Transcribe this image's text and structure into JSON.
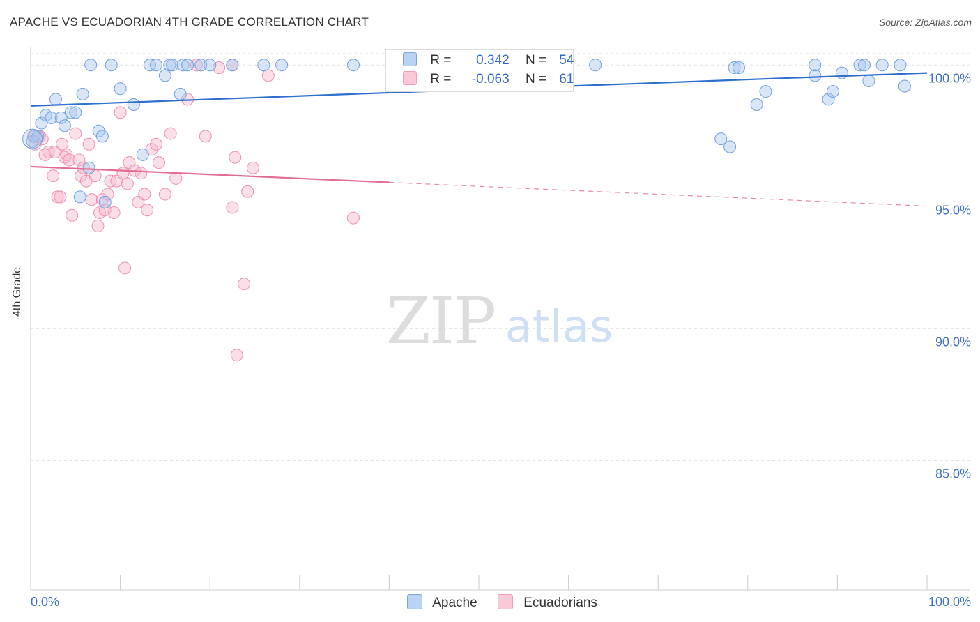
{
  "title": "APACHE VS ECUADORIAN 4TH GRADE CORRELATION CHART",
  "source": "Source: ZipAtlas.com",
  "watermark": {
    "zip": "ZIP",
    "atlas": "atlas"
  },
  "legend": {
    "r_label": "R =",
    "n_label": "N =",
    "apache": {
      "r": "0.342",
      "n": "54"
    },
    "ecuadorians": {
      "r": "-0.063",
      "n": "61"
    }
  },
  "colors": {
    "apache_fill": "#a8c8f0",
    "apache_stroke": "#6f9fdc",
    "apache_line": "#2f6fce",
    "ecu_fill": "#f7b8cb",
    "ecu_stroke": "#ee90ae",
    "ecu_line": "#e26c97",
    "tick_label": "#3f6fc6"
  },
  "chart_data": {
    "type": "scatter",
    "title": "APACHE VS ECUADORIAN 4TH GRADE CORRELATION CHART",
    "xlabel": "",
    "ylabel": "4th Grade",
    "xlim": [
      0,
      100
    ],
    "ylim": [
      80.2,
      100.8
    ],
    "x_tick_labels": [
      "0.0%",
      "100.0%"
    ],
    "y_ticks": [
      {
        "value": 100,
        "label": "100.0%"
      },
      {
        "value": 95,
        "label": "95.0%"
      },
      {
        "value": 90,
        "label": "90.0%"
      },
      {
        "value": 85,
        "label": "85.0%"
      }
    ],
    "grid": true,
    "legend_position": "bottom",
    "series": [
      {
        "name": "Apache",
        "points": [
          [
            0.2,
            97.1
          ],
          [
            0.8,
            97.3
          ],
          [
            1.2,
            97.8
          ],
          [
            1.7,
            98.1
          ],
          [
            2.3,
            98.0
          ],
          [
            2.8,
            98.7
          ],
          [
            3.4,
            98.0
          ],
          [
            3.8,
            97.7
          ],
          [
            4.5,
            98.2
          ],
          [
            5.0,
            98.2
          ],
          [
            5.5,
            95.0
          ],
          [
            5.8,
            98.9
          ],
          [
            6.5,
            96.1
          ],
          [
            7.6,
            97.5
          ],
          [
            8.0,
            97.3
          ],
          [
            8.3,
            94.8
          ],
          [
            6.7,
            100.0
          ],
          [
            9.0,
            100.0
          ],
          [
            10.0,
            99.1
          ],
          [
            11.5,
            98.5
          ],
          [
            12.5,
            96.6
          ],
          [
            13.3,
            100.0
          ],
          [
            14.0,
            100.0
          ],
          [
            15.0,
            99.6
          ],
          [
            15.5,
            100.0
          ],
          [
            15.8,
            100.0
          ],
          [
            16.7,
            98.9
          ],
          [
            17.0,
            100.0
          ],
          [
            17.5,
            100.0
          ],
          [
            19.0,
            100.0
          ],
          [
            20.0,
            100.0
          ],
          [
            22.5,
            100.0
          ],
          [
            26.0,
            100.0
          ],
          [
            28.0,
            100.0
          ],
          [
            36.0,
            100.0
          ],
          [
            63.0,
            100.0
          ],
          [
            77.0,
            97.2
          ],
          [
            78.0,
            96.9
          ],
          [
            78.5,
            99.9
          ],
          [
            79.0,
            99.9
          ],
          [
            81.0,
            98.5
          ],
          [
            82.0,
            99.0
          ],
          [
            87.5,
            99.6
          ],
          [
            87.5,
            100.0
          ],
          [
            89.0,
            98.7
          ],
          [
            89.5,
            99.0
          ],
          [
            90.5,
            99.7
          ],
          [
            92.5,
            100.0
          ],
          [
            93.0,
            100.0
          ],
          [
            93.5,
            99.4
          ],
          [
            95.0,
            100.0
          ],
          [
            97.5,
            99.2
          ],
          [
            97.0,
            100.0
          ],
          [
            0.4,
            97.3
          ]
        ]
      },
      {
        "name": "Ecuadorians",
        "points": [
          [
            0.3,
            97.3
          ],
          [
            0.5,
            97.0
          ],
          [
            0.7,
            97.2
          ],
          [
            1.0,
            97.3
          ],
          [
            1.3,
            97.2
          ],
          [
            1.6,
            96.6
          ],
          [
            2.0,
            96.7
          ],
          [
            2.5,
            95.8
          ],
          [
            2.7,
            96.7
          ],
          [
            3.0,
            95.0
          ],
          [
            3.3,
            95.0
          ],
          [
            3.5,
            97.0
          ],
          [
            3.8,
            96.5
          ],
          [
            4.0,
            96.6
          ],
          [
            4.3,
            96.4
          ],
          [
            4.6,
            94.3
          ],
          [
            5.0,
            97.4
          ],
          [
            5.4,
            96.4
          ],
          [
            5.6,
            95.8
          ],
          [
            5.9,
            96.1
          ],
          [
            6.2,
            95.6
          ],
          [
            6.5,
            97.0
          ],
          [
            6.8,
            94.9
          ],
          [
            7.2,
            95.8
          ],
          [
            7.5,
            93.9
          ],
          [
            7.7,
            94.4
          ],
          [
            8.0,
            94.9
          ],
          [
            8.3,
            94.5
          ],
          [
            8.6,
            95.1
          ],
          [
            8.9,
            95.6
          ],
          [
            9.3,
            94.4
          ],
          [
            9.6,
            95.6
          ],
          [
            10.0,
            98.2
          ],
          [
            10.3,
            95.9
          ],
          [
            10.5,
            92.3
          ],
          [
            10.8,
            95.5
          ],
          [
            11.0,
            96.3
          ],
          [
            11.6,
            96.0
          ],
          [
            12.0,
            94.8
          ],
          [
            12.3,
            95.9
          ],
          [
            12.7,
            95.1
          ],
          [
            13.0,
            94.5
          ],
          [
            13.5,
            96.8
          ],
          [
            14.0,
            97.0
          ],
          [
            14.3,
            96.3
          ],
          [
            15.0,
            95.1
          ],
          [
            15.6,
            97.4
          ],
          [
            16.2,
            95.7
          ],
          [
            17.5,
            98.7
          ],
          [
            18.5,
            100.0
          ],
          [
            19.5,
            97.3
          ],
          [
            21.0,
            99.9
          ],
          [
            22.5,
            100.0
          ],
          [
            22.5,
            94.6
          ],
          [
            22.8,
            96.5
          ],
          [
            23.0,
            89.0
          ],
          [
            23.8,
            91.7
          ],
          [
            24.2,
            95.2
          ],
          [
            24.8,
            96.1
          ],
          [
            26.5,
            99.6
          ],
          [
            36.0,
            94.2
          ]
        ]
      }
    ],
    "trend_lines": [
      {
        "name": "Apache",
        "x": [
          0,
          100
        ],
        "y": [
          98.45,
          99.7
        ],
        "style": "solid"
      },
      {
        "name": "Ecuadorians",
        "x": [
          0,
          40,
          100
        ],
        "y": [
          96.15,
          95.55,
          94.65
        ],
        "style": "solid-then-dashed"
      }
    ]
  }
}
